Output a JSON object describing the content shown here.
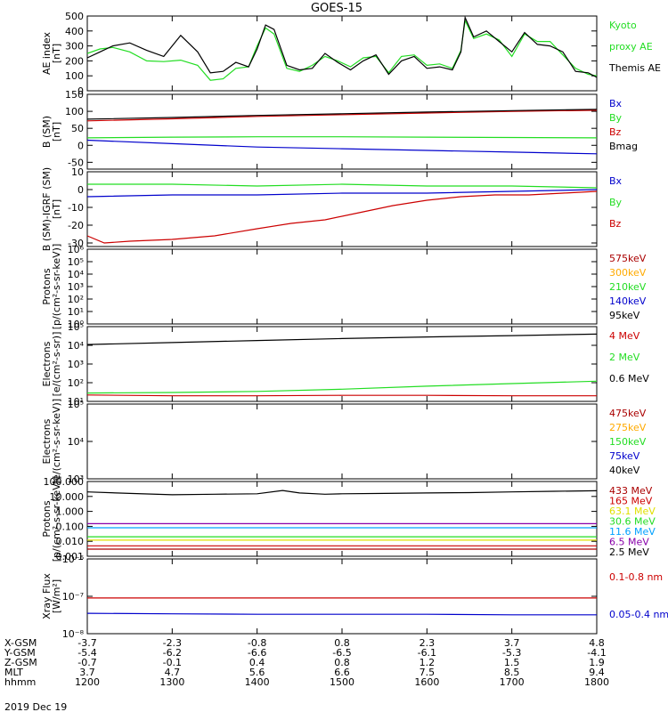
{
  "title": "GOES-15",
  "date_label": "2019 Dec 19",
  "colors": {
    "black": "#000000",
    "red": "#cc0000",
    "green": "#22dd22",
    "blue": "#0000cc",
    "orange": "#ffaa00",
    "yellow": "#e0e000",
    "lightblue": "#00a0ff",
    "purple": "#8800aa",
    "darkred": "#aa0000"
  },
  "footer": {
    "rows": [
      {
        "label": "X-GSM",
        "values": [
          "-3.7",
          "-2.3",
          "-0.8",
          "0.8",
          "2.3",
          "3.7",
          "4.8"
        ]
      },
      {
        "label": "Y-GSM",
        "values": [
          "-5.4",
          "-6.2",
          "-6.6",
          "-6.5",
          "-6.1",
          "-5.3",
          "-4.1"
        ]
      },
      {
        "label": "Z-GSM",
        "values": [
          "-0.7",
          "-0.1",
          "0.4",
          "0.8",
          "1.2",
          "1.5",
          "1.9"
        ]
      },
      {
        "label": "MLT",
        "values": [
          "3.7",
          "4.7",
          "5.6",
          "6.6",
          "7.5",
          "8.5",
          "9.4"
        ]
      },
      {
        "label": "hhmm",
        "values": [
          "1200",
          "1300",
          "1400",
          "1500",
          "1600",
          "1700",
          "1800"
        ]
      }
    ]
  },
  "chart_data": [
    {
      "type": "line",
      "ylabel": [
        "AE index",
        "[nT]"
      ],
      "yscale": "linear",
      "ylim": [
        0,
        500
      ],
      "yticks": [
        0,
        100,
        200,
        300,
        400,
        500
      ],
      "ytick_labels": [
        "0",
        "100",
        "200",
        "300",
        "400",
        "500"
      ],
      "legend": [
        {
          "text": "Kyoto",
          "color": "green"
        },
        {
          "text": "proxy AE",
          "color": "green"
        },
        {
          "text": "Themis AE",
          "color": "black"
        }
      ],
      "series": [
        {
          "name": "Kyoto proxy AE",
          "color": "green",
          "x": [
            12.0,
            12.15,
            12.3,
            12.5,
            12.7,
            12.9,
            13.1,
            13.3,
            13.45,
            13.6,
            13.75,
            13.9,
            14.0,
            14.1,
            14.2,
            14.35,
            14.5,
            14.65,
            14.8,
            14.95,
            15.1,
            15.25,
            15.4,
            15.55,
            15.7,
            15.85,
            16.0,
            16.15,
            16.3,
            16.4,
            16.45,
            16.55,
            16.7,
            16.85,
            17.0,
            17.15,
            17.3,
            17.45,
            17.6,
            17.75,
            17.9,
            18.0
          ],
          "y": [
            250,
            280,
            290,
            260,
            200,
            195,
            205,
            170,
            70,
            80,
            150,
            160,
            300,
            420,
            380,
            150,
            130,
            170,
            230,
            200,
            160,
            220,
            230,
            120,
            230,
            240,
            170,
            180,
            150,
            270,
            470,
            350,
            380,
            340,
            230,
            380,
            330,
            330,
            240,
            150,
            110,
            100
          ]
        },
        {
          "name": "Themis AE",
          "color": "black",
          "x": [
            12.0,
            12.15,
            12.3,
            12.5,
            12.7,
            12.9,
            13.1,
            13.3,
            13.45,
            13.6,
            13.75,
            13.9,
            14.0,
            14.1,
            14.2,
            14.35,
            14.5,
            14.65,
            14.8,
            14.95,
            15.1,
            15.25,
            15.4,
            15.55,
            15.7,
            15.85,
            16.0,
            16.15,
            16.3,
            16.4,
            16.45,
            16.55,
            16.7,
            16.85,
            17.0,
            17.15,
            17.3,
            17.45,
            17.6,
            17.75,
            17.9,
            18.0
          ],
          "y": [
            220,
            260,
            300,
            320,
            270,
            230,
            370,
            260,
            120,
            130,
            190,
            160,
            280,
            440,
            410,
            170,
            140,
            150,
            250,
            190,
            140,
            200,
            240,
            110,
            200,
            230,
            150,
            160,
            140,
            260,
            490,
            360,
            400,
            330,
            260,
            390,
            310,
            300,
            260,
            130,
            120,
            90
          ]
        }
      ]
    },
    {
      "type": "line",
      "ylabel": [
        "B (SM)",
        "[nT]"
      ],
      "yscale": "linear",
      "ylim": [
        -70,
        150
      ],
      "yticks": [
        -50,
        0,
        50,
        100,
        150
      ],
      "ytick_labels": [
        "-50",
        "0",
        "50",
        "100",
        "150"
      ],
      "legend": [
        {
          "text": "Bx",
          "color": "blue"
        },
        {
          "text": "By",
          "color": "green"
        },
        {
          "text": "Bz",
          "color": "red"
        },
        {
          "text": "Bmag",
          "color": "black"
        }
      ],
      "series": [
        {
          "name": "Bx",
          "color": "blue",
          "x": [
            12,
            13,
            14,
            15,
            16,
            17,
            18
          ],
          "y": [
            15,
            5,
            -5,
            -10,
            -15,
            -20,
            -25
          ]
        },
        {
          "name": "By",
          "color": "green",
          "x": [
            12,
            13,
            14,
            15,
            16,
            17,
            18
          ],
          "y": [
            22,
            24,
            25,
            25,
            24,
            23,
            22
          ]
        },
        {
          "name": "Bz",
          "color": "red",
          "x": [
            12,
            13,
            14,
            15,
            16,
            17,
            18
          ],
          "y": [
            72,
            78,
            85,
            90,
            95,
            100,
            103
          ]
        },
        {
          "name": "Bmag",
          "color": "black",
          "x": [
            12,
            13,
            14,
            15,
            16,
            17,
            18
          ],
          "y": [
            77,
            82,
            88,
            93,
            98,
            102,
            106
          ]
        }
      ]
    },
    {
      "type": "line",
      "ylabel": [
        "B (SM)-IGRF (SM)",
        "[nT]"
      ],
      "yscale": "linear",
      "ylim": [
        -32,
        10
      ],
      "yticks": [
        -30,
        -20,
        -10,
        0,
        10
      ],
      "ytick_labels": [
        "-30",
        "-20",
        "-10",
        "0",
        "10"
      ],
      "legend": [
        {
          "text": "Bx",
          "color": "blue"
        },
        {
          "text": "By",
          "color": "green"
        },
        {
          "text": "Bz",
          "color": "red"
        }
      ],
      "series": [
        {
          "name": "Bx",
          "color": "blue",
          "x": [
            12,
            13,
            14,
            15,
            16,
            17,
            18
          ],
          "y": [
            -4,
            -3,
            -3,
            -2,
            -2,
            -1,
            0
          ]
        },
        {
          "name": "By",
          "color": "green",
          "x": [
            12,
            13,
            14,
            15,
            16,
            17,
            18
          ],
          "y": [
            3,
            3,
            2,
            3,
            2,
            2,
            1
          ]
        },
        {
          "name": "Bz",
          "color": "red",
          "x": [
            12,
            12.2,
            12.5,
            13.0,
            13.5,
            14.0,
            14.4,
            14.8,
            15.2,
            15.6,
            16.0,
            16.4,
            16.8,
            17.2,
            17.6,
            18.0
          ],
          "y": [
            -26,
            -30,
            -29,
            -28,
            -26,
            -22,
            -19,
            -17,
            -13,
            -9,
            -6,
            -4,
            -3,
            -3,
            -2,
            -1
          ]
        }
      ]
    },
    {
      "type": "line",
      "ylabel": [
        "Protons",
        "[p/(cm²-s-sr-keV)]"
      ],
      "yscale": "log",
      "ylim": [
        1,
        1000000
      ],
      "yticks": [
        1,
        10,
        100,
        1000,
        10000,
        100000,
        1000000
      ],
      "ytick_labels": [
        "10⁰",
        "10¹",
        "10²",
        "10³",
        "10⁴",
        "10⁵",
        "10⁶"
      ],
      "legend": [
        {
          "text": "575keV",
          "color": "darkred"
        },
        {
          "text": "300keV",
          "color": "orange"
        },
        {
          "text": "210keV",
          "color": "green"
        },
        {
          "text": "140keV",
          "color": "blue"
        },
        {
          "text": "95keV",
          "color": "black"
        }
      ],
      "series": []
    },
    {
      "type": "line",
      "ylabel": [
        "Electrons",
        "[e/(cm²-s-sr)]"
      ],
      "yscale": "log",
      "ylim": [
        10,
        100000
      ],
      "yticks": [
        10,
        100,
        1000,
        10000,
        100000
      ],
      "ytick_labels": [
        "10¹",
        "10²",
        "10³",
        "10⁴",
        "10⁵"
      ],
      "legend": [
        {
          "text": "4 MeV",
          "color": "red"
        },
        {
          "text": "2 MeV",
          "color": "green"
        },
        {
          "text": "0.6 MeV",
          "color": "black"
        }
      ],
      "series": [
        {
          "name": "0.6 MeV",
          "color": "black",
          "x": [
            12,
            13,
            14,
            15,
            16,
            17,
            18
          ],
          "y": [
            11000,
            14000,
            18000,
            23000,
            28000,
            33000,
            40000
          ]
        },
        {
          "name": "2 MeV",
          "color": "green",
          "x": [
            12,
            13,
            14,
            15,
            16,
            17,
            18
          ],
          "y": [
            28,
            30,
            34,
            45,
            65,
            90,
            120
          ]
        },
        {
          "name": "4 MeV",
          "color": "red",
          "x": [
            12,
            13,
            14,
            15,
            16,
            17,
            18
          ],
          "y": [
            22,
            20,
            20,
            21,
            21,
            20,
            20
          ]
        }
      ]
    },
    {
      "type": "line",
      "ylabel": [
        "Electrons",
        "[e/(cm²-s-sr-keV)]"
      ],
      "yscale": "log",
      "ylim": [
        1000,
        100000
      ],
      "yticks": [
        1000,
        10000,
        100000
      ],
      "ytick_labels": [
        "10³",
        "10⁴",
        "10⁵"
      ],
      "legend": [
        {
          "text": "475keV",
          "color": "darkred"
        },
        {
          "text": "275keV",
          "color": "orange"
        },
        {
          "text": "150keV",
          "color": "green"
        },
        {
          "text": "75keV",
          "color": "blue"
        },
        {
          "text": "40keV",
          "color": "black"
        }
      ],
      "series": []
    },
    {
      "type": "line",
      "ylabel": [
        "Protons",
        "[p/(cm²-s-sr-keV)]"
      ],
      "yscale": "log",
      "ylim": [
        0.001,
        100
      ],
      "yticks": [
        0.001,
        0.01,
        0.1,
        1,
        10,
        100
      ],
      "ytick_labels": [
        "0.001",
        "0.010",
        "0.100",
        "1.000",
        "10.000",
        "100.000"
      ],
      "legend": [
        {
          "text": "433 MeV",
          "color": "darkred"
        },
        {
          "text": "165 MeV",
          "color": "red"
        },
        {
          "text": "63.1 MeV",
          "color": "yellow"
        },
        {
          "text": "30.6 MeV",
          "color": "green"
        },
        {
          "text": "11.6 MeV",
          "color": "lightblue"
        },
        {
          "text": "6.5 MeV",
          "color": "purple"
        },
        {
          "text": "2.5 MeV",
          "color": "black"
        }
      ],
      "series": [
        {
          "name": "2.5 MeV",
          "color": "black",
          "x": [
            12,
            12.5,
            13,
            13.5,
            14,
            14.3,
            14.5,
            14.8,
            15,
            15.5,
            16,
            16.5,
            17,
            17.5,
            18
          ],
          "y": [
            20,
            16,
            13,
            14,
            15,
            25,
            17,
            14,
            15,
            16,
            17,
            18,
            20,
            22,
            24
          ]
        },
        {
          "name": "6.5 MeV",
          "color": "purple",
          "x": [
            12,
            13,
            14,
            15,
            16,
            17,
            18
          ],
          "y": [
            0.15,
            0.15,
            0.15,
            0.15,
            0.15,
            0.15,
            0.15
          ]
        },
        {
          "name": "11.6 MeV",
          "color": "lightblue",
          "x": [
            12,
            13,
            14,
            15,
            16,
            17,
            18
          ],
          "y": [
            0.08,
            0.08,
            0.08,
            0.08,
            0.08,
            0.08,
            0.08
          ]
        },
        {
          "name": "30.6 MeV",
          "color": "green",
          "x": [
            12,
            13,
            14,
            15,
            16,
            17,
            18
          ],
          "y": [
            0.02,
            0.02,
            0.02,
            0.02,
            0.02,
            0.02,
            0.02
          ]
        },
        {
          "name": "63.1 MeV",
          "color": "yellow",
          "x": [
            12,
            13,
            14,
            15,
            16,
            17,
            18
          ],
          "y": [
            0.012,
            0.012,
            0.012,
            0.012,
            0.012,
            0.012,
            0.012
          ]
        },
        {
          "name": "165 MeV",
          "color": "red",
          "x": [
            12,
            13,
            14,
            15,
            16,
            17,
            18
          ],
          "y": [
            0.005,
            0.005,
            0.005,
            0.005,
            0.005,
            0.005,
            0.005
          ]
        },
        {
          "name": "433 MeV",
          "color": "darkred",
          "x": [
            12,
            13,
            14,
            15,
            16,
            17,
            18
          ],
          "y": [
            0.003,
            0.003,
            0.003,
            0.003,
            0.003,
            0.003,
            0.003
          ]
        }
      ]
    },
    {
      "type": "line",
      "ylabel": [
        "Xray Flux",
        "[W/m²]"
      ],
      "yscale": "log",
      "ylim": [
        1e-08,
        1e-06
      ],
      "yticks": [
        1e-08,
        1e-07,
        1e-06
      ],
      "ytick_labels": [
        "10⁻⁸",
        "10⁻⁷",
        "10⁻⁶"
      ],
      "legend": [
        {
          "text": "0.1-0.8 nm",
          "color": "red"
        },
        {
          "text": "0.05-0.4 nm",
          "color": "blue"
        }
      ],
      "series": [
        {
          "name": "0.1-0.8 nm",
          "color": "red",
          "x": [
            12,
            13,
            14,
            15,
            16,
            17,
            18
          ],
          "y": [
            9e-08,
            9e-08,
            9e-08,
            9e-08,
            9e-08,
            9e-08,
            9e-08
          ]
        },
        {
          "name": "0.05-0.4 nm",
          "color": "blue",
          "x": [
            12,
            13,
            14,
            15,
            16,
            17,
            18
          ],
          "y": [
            3.5e-08,
            3.4e-08,
            3.3e-08,
            3.3e-08,
            3.3e-08,
            3.2e-08,
            3.2e-08
          ]
        }
      ]
    }
  ]
}
